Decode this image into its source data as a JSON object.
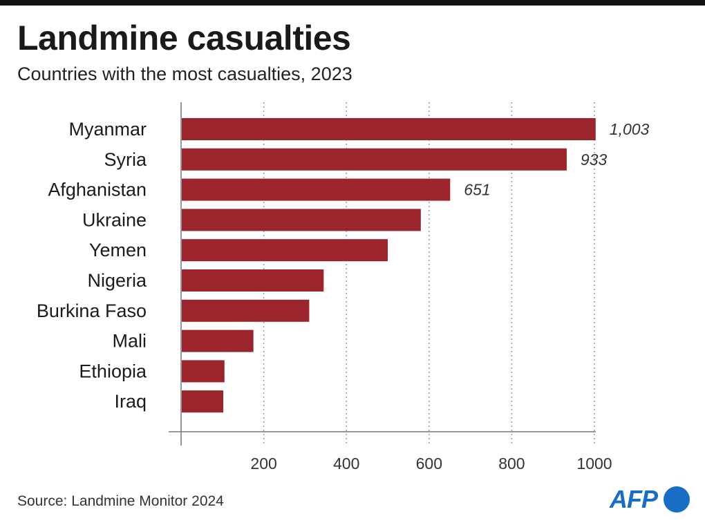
{
  "header": {
    "title": "Landmine casualties",
    "subtitle": "Countries with the most casualties, 2023"
  },
  "footer": {
    "source": "Source: Landmine Monitor 2024",
    "logo_text": "AFP"
  },
  "colors": {
    "bar": "#9b242d",
    "grid": "#9a9a9a",
    "axis": "#777777",
    "label_value": "#333333"
  },
  "chart_data": {
    "type": "bar",
    "orientation": "horizontal",
    "title": "Landmine casualties",
    "subtitle": "Countries with the most casualties, 2023",
    "categories": [
      "Myanmar",
      "Syria",
      "Afghanistan",
      "Ukraine",
      "Yemen",
      "Nigeria",
      "Burkina Faso",
      "Mali",
      "Ethiopia",
      "Iraq"
    ],
    "values": [
      1003,
      933,
      651,
      580,
      500,
      345,
      310,
      175,
      105,
      102
    ],
    "data_labels": [
      "1,003",
      "933",
      "651",
      "",
      "",
      "",
      "",
      "",
      "",
      ""
    ],
    "xlim": [
      0,
      1000
    ],
    "xticks": [
      200,
      400,
      600,
      800,
      1000
    ],
    "xtick_labels": [
      "200",
      "400",
      "600",
      "800",
      "1000"
    ],
    "grid": "vertical dotted",
    "legend": "none"
  }
}
